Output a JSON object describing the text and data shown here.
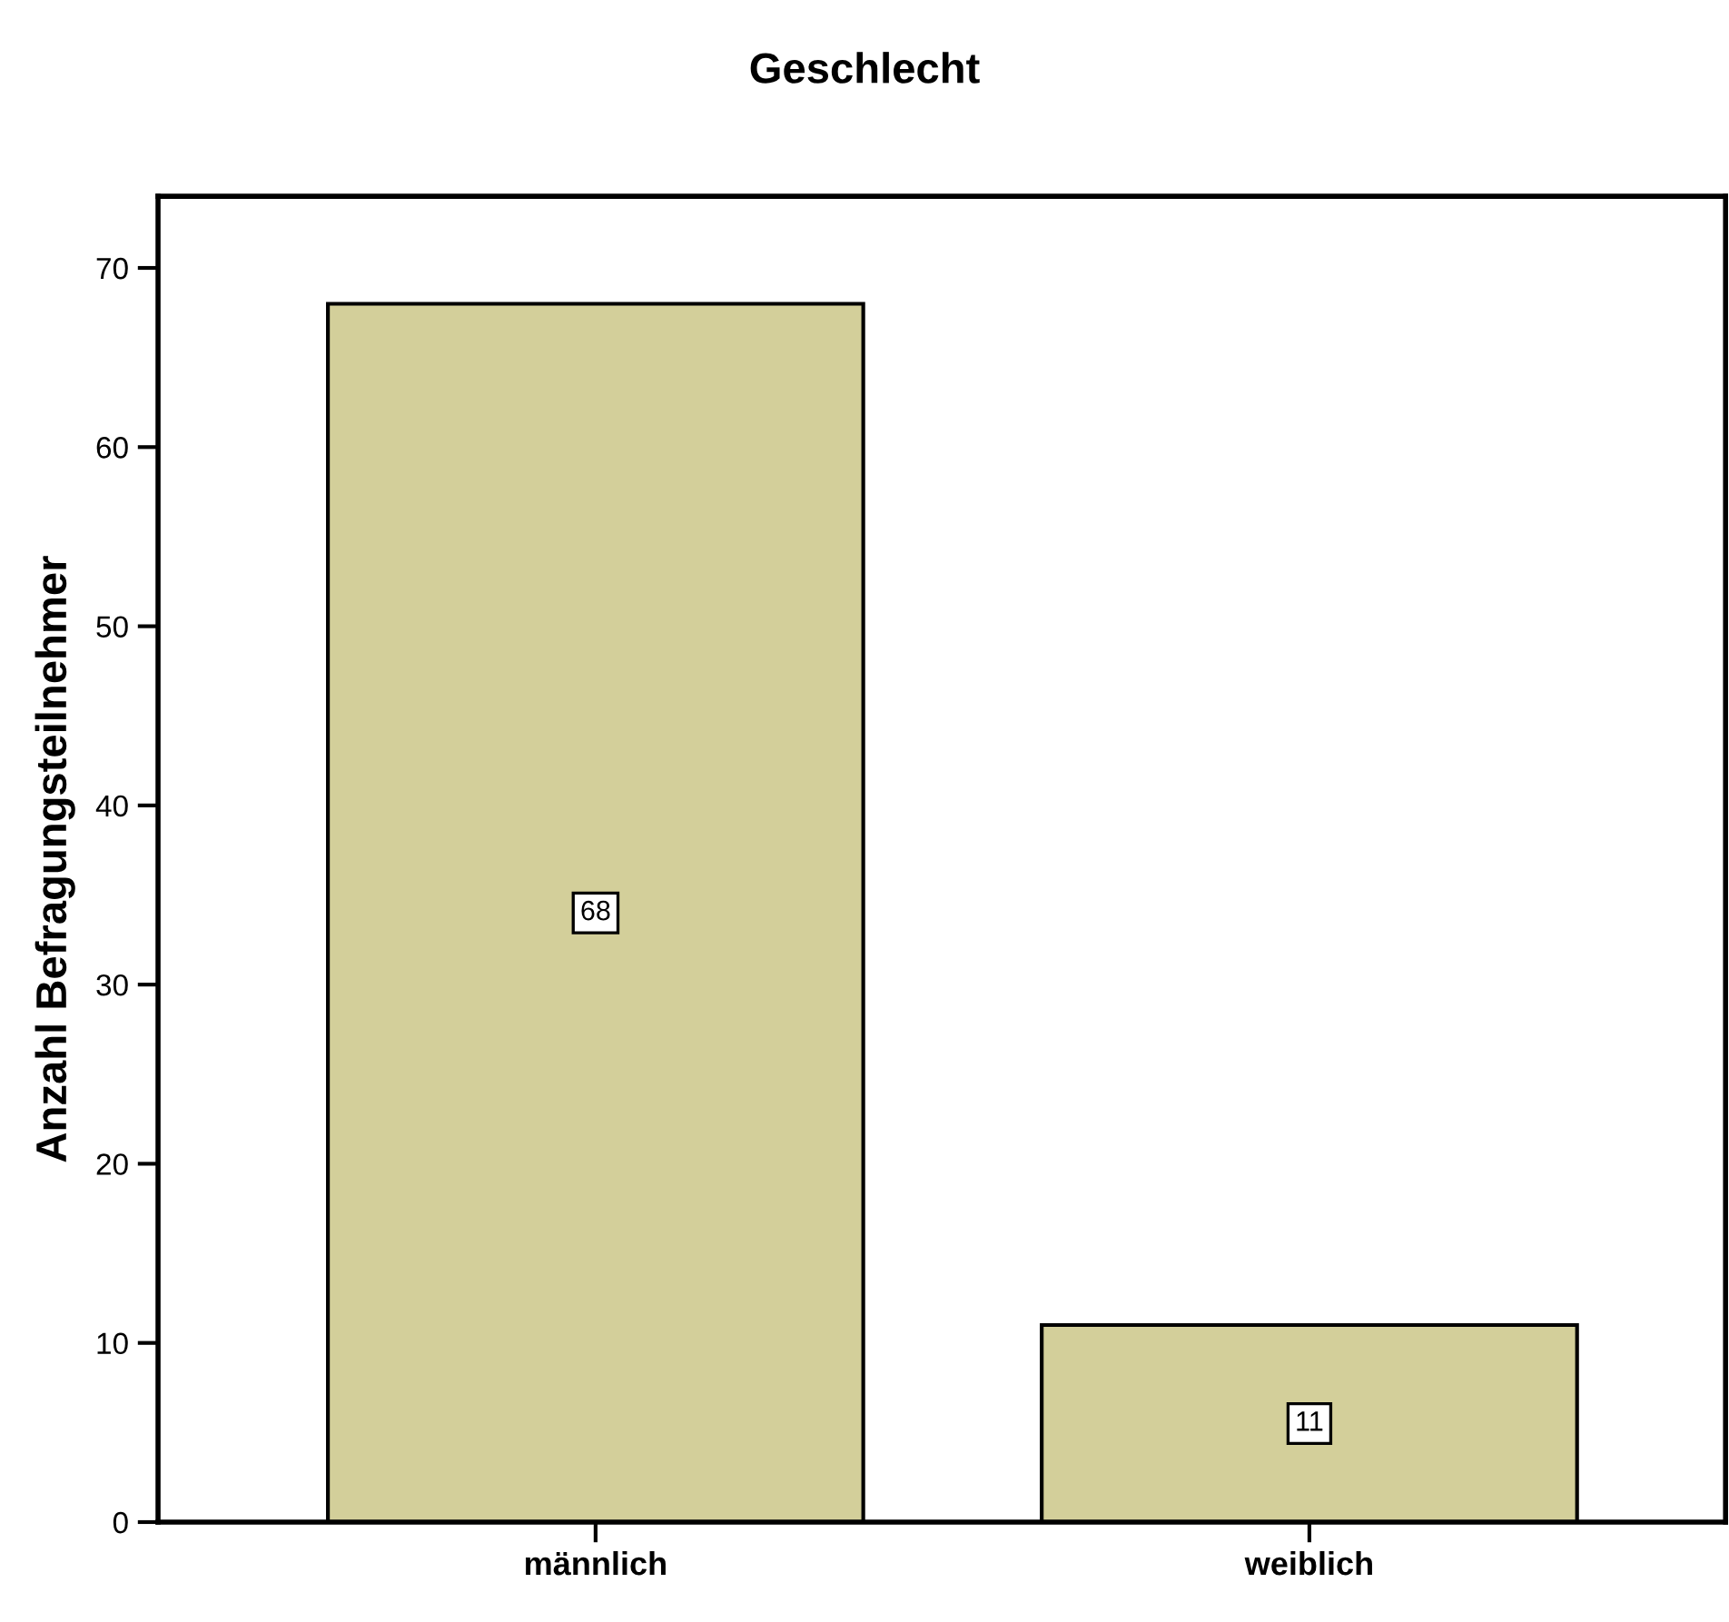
{
  "chart_data": {
    "type": "bar",
    "title": "Geschlecht",
    "ylabel": "Anzahl Befragungsteilnehmer",
    "categories": [
      "männlich",
      "weiblich"
    ],
    "values": [
      68,
      11
    ],
    "color": "#d3cf9a",
    "ylim": [
      0,
      74
    ],
    "yticks": [
      0,
      10,
      20,
      30,
      40,
      50,
      60,
      70
    ],
    "grid": false,
    "data_labels": true
  }
}
